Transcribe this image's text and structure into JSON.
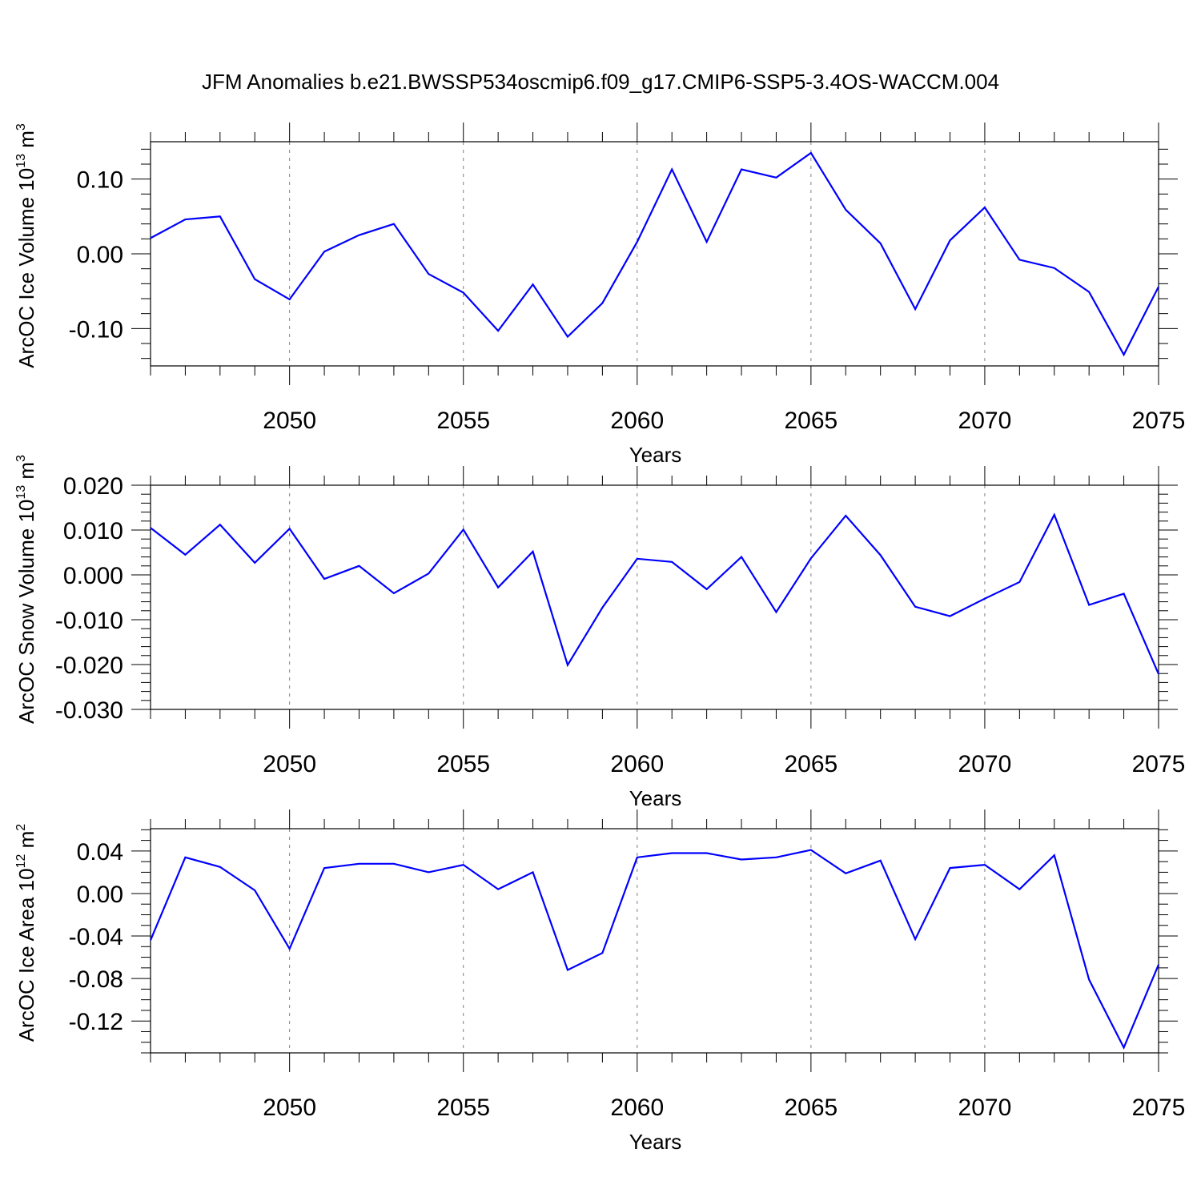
{
  "title": "JFM Anomalies b.e21.BWSSP534oscmip6.f09_g17.CMIP6-SSP5-3.4OS-WACCM.004",
  "colors": {
    "line": "#0000ff",
    "axis": "#000000",
    "grid": "#808080"
  },
  "chart_data": [
    {
      "type": "line",
      "ylabel_main": "ArcOC Ice Volume 10",
      "ylabel_exp": "13",
      "ylabel_unit": " m",
      "ylabel_unit_exp": "3",
      "xlabel": "Years",
      "xlim": [
        2046,
        2075
      ],
      "ylim": [
        -0.15,
        0.15
      ],
      "x_ticks": [
        2050,
        2055,
        2060,
        2065,
        2070,
        2075
      ],
      "x_tick_labels": [
        "2050",
        "2055",
        "2060",
        "2065",
        "2070",
        "2075"
      ],
      "y_ticks": [
        0.1,
        0.0,
        -0.1
      ],
      "y_tick_labels": [
        "0.10",
        "0.00",
        "-0.10"
      ],
      "y_minor_step": 0.02,
      "grid_x": [
        2050,
        2055,
        2060,
        2065,
        2070
      ],
      "x": [
        2046,
        2047,
        2048,
        2049,
        2050,
        2051,
        2052,
        2053,
        2054,
        2055,
        2056,
        2057,
        2058,
        2059,
        2060,
        2061,
        2062,
        2063,
        2064,
        2065,
        2066,
        2067,
        2068,
        2069,
        2070,
        2071,
        2072,
        2073,
        2074,
        2075
      ],
      "values": [
        0.021,
        0.046,
        0.05,
        -0.034,
        -0.061,
        0.003,
        0.025,
        0.04,
        -0.027,
        -0.052,
        -0.103,
        -0.041,
        -0.111,
        -0.066,
        0.016,
        0.113,
        0.016,
        0.113,
        0.102,
        0.135,
        0.059,
        0.014,
        -0.074,
        0.018,
        0.062,
        -0.008,
        -0.019,
        -0.051,
        -0.135,
        -0.044
      ]
    },
    {
      "type": "line",
      "ylabel_main": "ArcOC Snow Volume 10",
      "ylabel_exp": "13",
      "ylabel_unit": " m",
      "ylabel_unit_exp": "3",
      "xlabel": "Years",
      "xlim": [
        2046,
        2075
      ],
      "ylim": [
        -0.03,
        0.02
      ],
      "x_ticks": [
        2050,
        2055,
        2060,
        2065,
        2070,
        2075
      ],
      "x_tick_labels": [
        "2050",
        "2055",
        "2060",
        "2065",
        "2070",
        "2075"
      ],
      "y_ticks": [
        0.02,
        0.01,
        0.0,
        -0.01,
        -0.02,
        -0.03
      ],
      "y_tick_labels": [
        "0.020",
        "0.010",
        "0.000",
        "-0.010",
        "-0.020",
        "-0.030"
      ],
      "y_minor_step": 0.002,
      "grid_x": [
        2050,
        2055,
        2060,
        2065,
        2070
      ],
      "x": [
        2046,
        2047,
        2048,
        2049,
        2050,
        2051,
        2052,
        2053,
        2054,
        2055,
        2056,
        2057,
        2058,
        2059,
        2060,
        2061,
        2062,
        2063,
        2064,
        2065,
        2066,
        2067,
        2068,
        2069,
        2070,
        2071,
        2072,
        2073,
        2074,
        2075
      ],
      "values": [
        0.0105,
        0.0045,
        0.0112,
        0.0027,
        0.0103,
        -0.0009,
        0.002,
        -0.0041,
        0.0003,
        0.0101,
        -0.0028,
        0.0052,
        -0.0201,
        -0.0073,
        0.0036,
        0.0029,
        -0.0032,
        0.004,
        -0.0083,
        0.0037,
        0.0132,
        0.0044,
        -0.0071,
        -0.0092,
        -0.0053,
        -0.0016,
        0.0134,
        -0.0067,
        -0.0042,
        -0.0221
      ]
    },
    {
      "type": "line",
      "ylabel_main": "ArcOC Ice Area 10",
      "ylabel_exp": "12",
      "ylabel_unit": " m",
      "ylabel_unit_exp": "2",
      "xlabel": "Years",
      "xlim": [
        2046,
        2075
      ],
      "ylim": [
        -0.15,
        0.061
      ],
      "x_ticks": [
        2050,
        2055,
        2060,
        2065,
        2070,
        2075
      ],
      "x_tick_labels": [
        "2050",
        "2055",
        "2060",
        "2065",
        "2070",
        "2075"
      ],
      "y_ticks": [
        0.04,
        0.0,
        -0.04,
        -0.08,
        -0.12
      ],
      "y_tick_labels": [
        "0.04",
        "0.00",
        "-0.04",
        "-0.08",
        "-0.12"
      ],
      "y_minor_step": 0.01,
      "grid_x": [
        2050,
        2055,
        2060,
        2065,
        2070
      ],
      "x": [
        2046,
        2047,
        2048,
        2049,
        2050,
        2051,
        2052,
        2053,
        2054,
        2055,
        2056,
        2057,
        2058,
        2059,
        2060,
        2061,
        2062,
        2063,
        2064,
        2065,
        2066,
        2067,
        2068,
        2069,
        2070,
        2071,
        2072,
        2073,
        2074,
        2075
      ],
      "values": [
        -0.044,
        0.034,
        0.025,
        0.003,
        -0.052,
        0.024,
        0.028,
        0.028,
        0.02,
        0.027,
        0.004,
        0.02,
        -0.072,
        -0.056,
        0.034,
        0.038,
        0.038,
        0.032,
        0.034,
        0.041,
        0.019,
        0.031,
        -0.043,
        0.024,
        0.027,
        0.004,
        0.036,
        -0.081,
        -0.145,
        -0.067
      ]
    }
  ]
}
